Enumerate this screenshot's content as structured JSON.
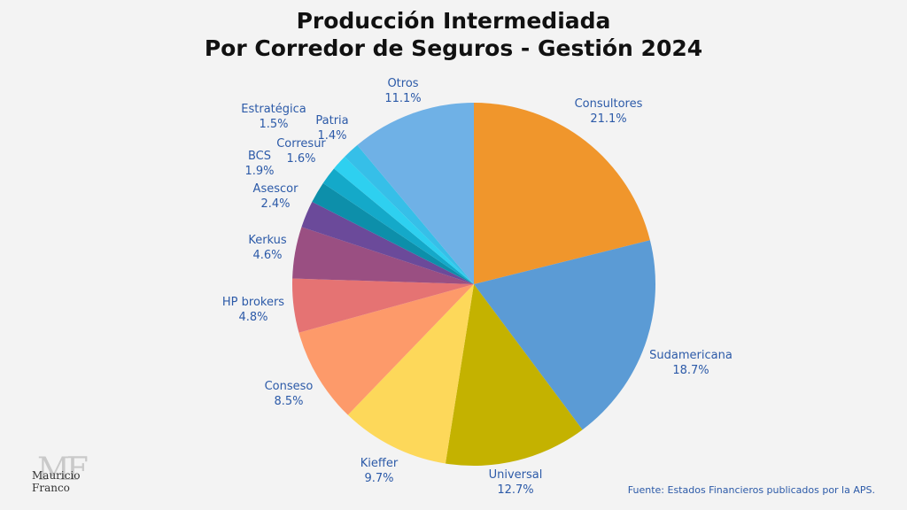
{
  "title_line1": "Producción Intermediada",
  "title_line2": "Por Corredor de Seguros - Gestión 2024",
  "source": "Fuente: Estados Financieros publicados por la APS.",
  "watermark": {
    "monogram": "MF",
    "name": "Mauricio Franco"
  },
  "chart_data": {
    "type": "pie",
    "title": "Producción Intermediada Por Corredor de Seguros - Gestión 2024",
    "label_color": "#2c5aa8",
    "slices": [
      {
        "label": "Consultores",
        "pct_label": "21.1%",
        "value": 21.1,
        "color": "#f0962c"
      },
      {
        "label": "Sudamericana",
        "pct_label": "18.7%",
        "value": 18.7,
        "color": "#5b9bd5"
      },
      {
        "label": "Universal",
        "pct_label": "12.7%",
        "value": 12.7,
        "color": "#c4b200"
      },
      {
        "label": "Kieffer",
        "pct_label": "9.7%",
        "value": 9.7,
        "color": "#fdd85a"
      },
      {
        "label": "Conseso",
        "pct_label": "8.5%",
        "value": 8.5,
        "color": "#fd9a6a"
      },
      {
        "label": "HP brokers",
        "pct_label": "4.8%",
        "value": 4.8,
        "color": "#e57373"
      },
      {
        "label": "Kerkus",
        "pct_label": "4.6%",
        "value": 4.6,
        "color": "#9a4f82"
      },
      {
        "label": "Asescor",
        "pct_label": "2.4%",
        "value": 2.4,
        "color": "#6b4a9a"
      },
      {
        "label": "BCS",
        "pct_label": "1.9%",
        "value": 1.9,
        "color": "#0d8faa"
      },
      {
        "label": "Corresur",
        "pct_label": "1.6%",
        "value": 1.6,
        "color": "#14a9c9"
      },
      {
        "label": "Patria",
        "pct_label": "1.4%",
        "value": 1.4,
        "color": "#2ed0f0"
      },
      {
        "label": "Estratégica",
        "pct_label": "1.5%",
        "value": 1.5,
        "color": "#36bfe8"
      },
      {
        "label": "Otros",
        "pct_label": "11.1%",
        "value": 11.1,
        "color": "#6fb1e6"
      }
    ]
  }
}
